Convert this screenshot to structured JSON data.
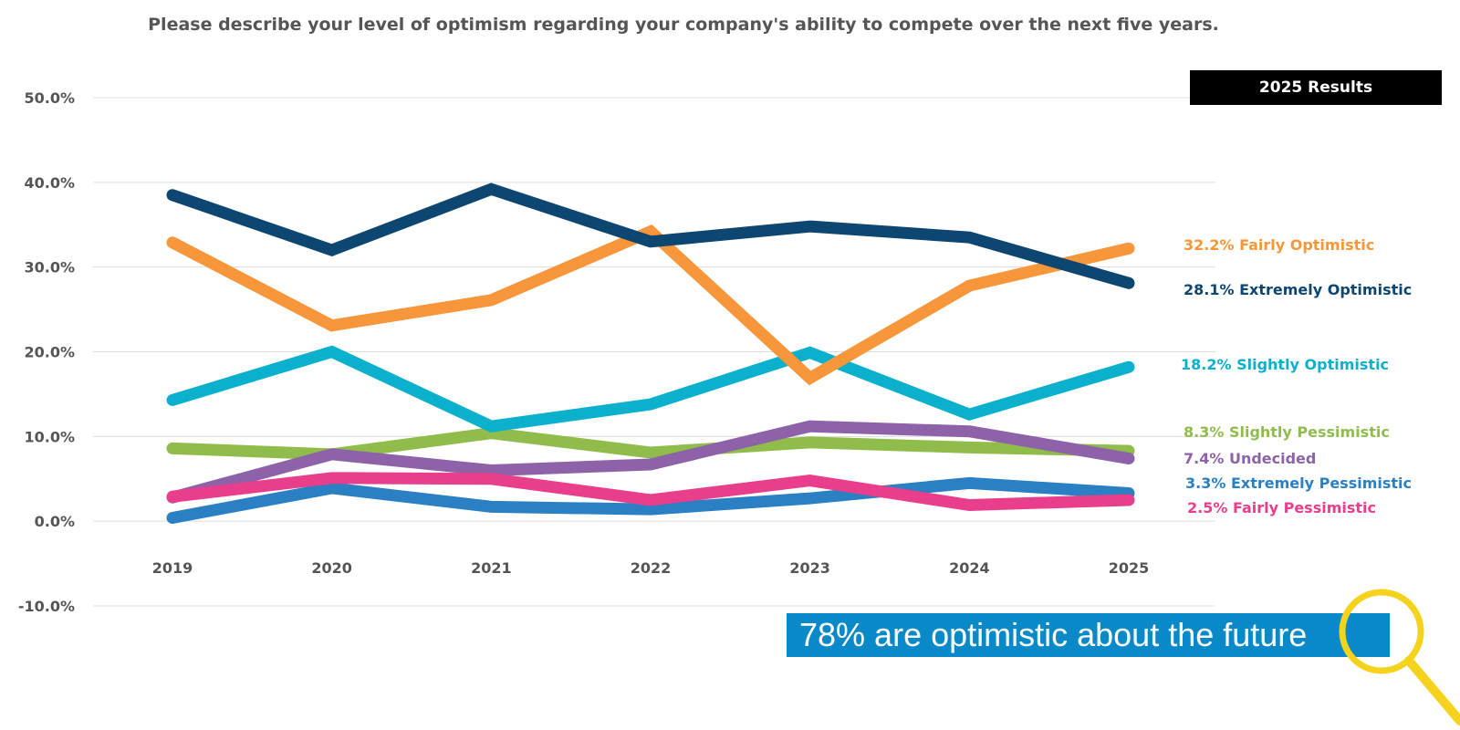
{
  "chart_data": {
    "type": "line",
    "title": "Please describe your level of optimism regarding your company's ability to compete over the next five years.",
    "categories": [
      "2019",
      "2020",
      "2021",
      "2022",
      "2023",
      "2024",
      "2025"
    ],
    "ylim": [
      -10,
      50
    ],
    "yticks": [
      "-10.0%",
      "0.0%",
      "10.0%",
      "20.0%",
      "30.0%",
      "40.0%",
      "50.0%"
    ],
    "ytick_values": [
      -10,
      0,
      10,
      20,
      30,
      40,
      50
    ],
    "grid": true,
    "series": [
      {
        "name": "Slightly Pessimistic",
        "label": "8.3% Slightly Pessimistic",
        "color": "#8fbc4b",
        "values": [
          8.6,
          7.9,
          10.4,
          8.1,
          9.3,
          8.7,
          8.3
        ]
      },
      {
        "name": "Undecided",
        "label": "7.4% Undecided",
        "color": "#8e62a8",
        "values": [
          2.8,
          7.9,
          6.0,
          6.7,
          11.2,
          10.6,
          7.4
        ]
      },
      {
        "name": "Extremely Pessimistic",
        "label": "3.3% Extremely Pessimistic",
        "color": "#2a80c3",
        "values": [
          0.4,
          3.9,
          1.7,
          1.4,
          2.7,
          4.5,
          3.3
        ]
      },
      {
        "name": "Fairly Pessimistic",
        "label": "2.5% Fairly Pessimistic",
        "color": "#e83e8c",
        "values": [
          2.9,
          5.1,
          5.0,
          2.5,
          4.8,
          1.9,
          2.5
        ]
      },
      {
        "name": "Slightly Optimistic",
        "label": "18.2% Slightly Optimistic",
        "color": "#0bb0cc",
        "values": [
          14.3,
          20.0,
          11.2,
          13.8,
          19.9,
          12.6,
          18.2
        ]
      },
      {
        "name": "Fairly Optimistic",
        "label": "32.2% Fairly Optimistic",
        "color": "#f7963a",
        "values": [
          32.9,
          23.1,
          26.1,
          34.2,
          16.9,
          27.8,
          32.2
        ]
      },
      {
        "name": "Extremely Optimistic",
        "label": "28.1% Extremely Optimistic",
        "color": "#0d4670",
        "values": [
          38.5,
          32.0,
          39.2,
          33.0,
          34.8,
          33.5,
          28.1
        ]
      }
    ]
  },
  "badge": {
    "text": "2025 Results"
  },
  "callout": {
    "text": "78% are optimistic about the future"
  },
  "colors": {
    "magnifier": "#f5d31d",
    "callout_bg": "#0a89c8",
    "grid": "#dddddd",
    "text": "#555555"
  }
}
